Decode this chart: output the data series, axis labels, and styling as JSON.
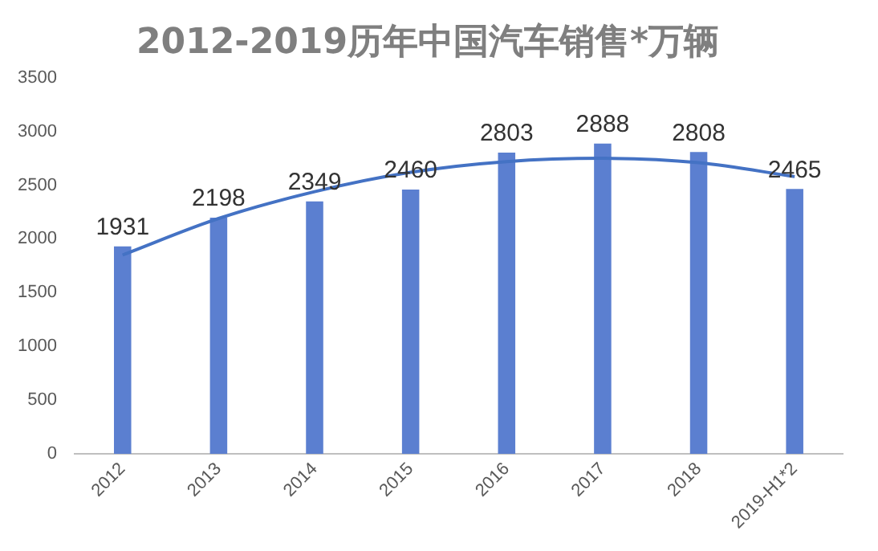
{
  "chart_data": {
    "type": "bar",
    "title": "2012-2019历年中国汽车销售*万辆",
    "categories": [
      "2012",
      "2013",
      "2014",
      "2015",
      "2016",
      "2017",
      "2018",
      "2019-H1*2"
    ],
    "series": [
      {
        "color": "#5b7fd0",
        "values": [
          1931,
          2198,
          2349,
          2460,
          2803,
          2888,
          2808,
          2465
        ],
        "value_labels": [
          "1931",
          "2198",
          "2349",
          "2460",
          "2803",
          "2888",
          "2808",
          "2465"
        ]
      },
      {
        "type": "line",
        "color": "#4472c4",
        "values": [
          1850,
          2190,
          2440,
          2620,
          2720,
          2750,
          2710,
          2580
        ]
      }
    ],
    "ylim": [
      0,
      3500
    ],
    "yticks": [
      0,
      500,
      1000,
      1500,
      2000,
      2500,
      3000,
      3500
    ],
    "grid": false,
    "legend": false,
    "marker": "none"
  }
}
